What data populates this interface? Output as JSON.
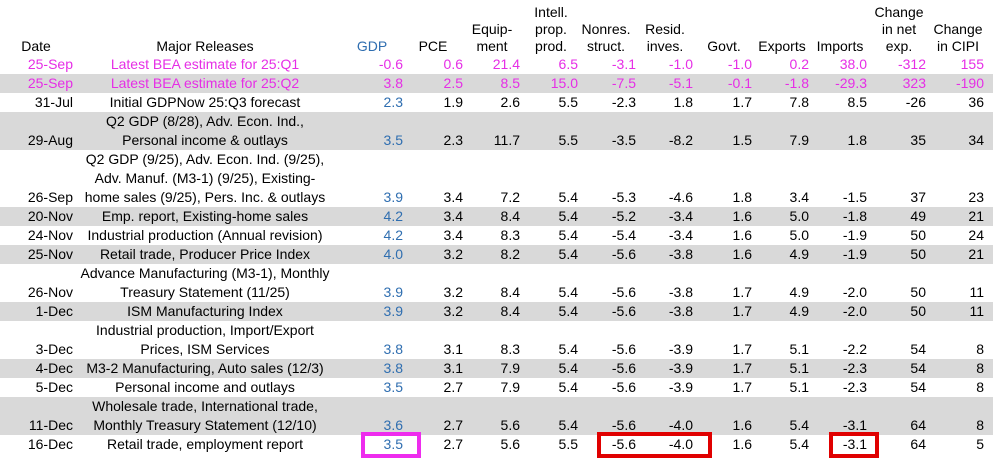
{
  "colors": {
    "estimate": "#e62ee6",
    "gdp": "#2f6eb0",
    "shade": "#d9d9d9",
    "box_gdp": "#ee2cee",
    "box_other": "#e00000"
  },
  "headers": {
    "date": "Date",
    "major": "Major Releases",
    "gdp": "GDP",
    "pce": "PCE",
    "equip": [
      "Equip-",
      "ment"
    ],
    "ipp": [
      "Intell.",
      "prop.",
      "prod."
    ],
    "nonres": [
      "Nonres.",
      "struct."
    ],
    "resid": [
      "Resid.",
      "inves."
    ],
    "govt": "Govt.",
    "exports": "Exports",
    "imports": "Imports",
    "netexp": [
      "Change",
      "in net",
      "exp."
    ],
    "cipi": [
      "Change",
      "in CIPI"
    ]
  },
  "rows": [
    {
      "date": "25-Sep",
      "release": [
        "Latest BEA estimate for 25:Q1"
      ],
      "gdp": "-0.6",
      "pce": "0.6",
      "equip": "21.4",
      "ipp": "6.5",
      "nonres": "-3.1",
      "resid": "-1.0",
      "govt": "-1.0",
      "exports": "0.2",
      "imports": "38.0",
      "netexp": "-312",
      "cipi": "155",
      "style": "estimate",
      "shaded": false
    },
    {
      "date": "25-Sep",
      "release": [
        "Latest BEA estimate for 25:Q2"
      ],
      "gdp": "3.8",
      "pce": "2.5",
      "equip": "8.5",
      "ipp": "15.0",
      "nonres": "-7.5",
      "resid": "-5.1",
      "govt": "-0.1",
      "exports": "-1.8",
      "imports": "-29.3",
      "netexp": "323",
      "cipi": "-190",
      "style": "estimate",
      "shaded": true
    },
    {
      "date": "31-Jul",
      "release": [
        "Initial GDPNow 25:Q3 forecast"
      ],
      "gdp": "2.3",
      "pce": "1.9",
      "equip": "2.6",
      "ipp": "5.5",
      "nonres": "-2.3",
      "resid": "1.8",
      "govt": "1.7",
      "exports": "7.8",
      "imports": "8.5",
      "netexp": "-26",
      "cipi": "36",
      "style": "normal",
      "shaded": false
    },
    {
      "date": "29-Aug",
      "release": [
        "Q2 GDP (8/28), Adv. Econ. Ind.,",
        "Personal income & outlays"
      ],
      "gdp": "3.5",
      "pce": "2.3",
      "equip": "11.7",
      "ipp": "5.5",
      "nonres": "-3.5",
      "resid": "-8.2",
      "govt": "1.5",
      "exports": "7.9",
      "imports": "1.8",
      "netexp": "35",
      "cipi": "34",
      "style": "normal",
      "shaded": true
    },
    {
      "date": "26-Sep",
      "release": [
        "Q2 GDP (9/25), Adv. Econ. Ind. (9/25),",
        "Adv. Manuf. (M3-1) (9/25), Existing-",
        "home sales (9/25), Pers. Inc. & outlays"
      ],
      "gdp": "3.9",
      "pce": "3.4",
      "equip": "7.2",
      "ipp": "5.4",
      "nonres": "-5.3",
      "resid": "-4.6",
      "govt": "1.8",
      "exports": "3.4",
      "imports": "-1.5",
      "netexp": "37",
      "cipi": "23",
      "style": "normal",
      "shaded": false
    },
    {
      "date": "20-Nov",
      "release": [
        "Emp. report, Existing-home sales"
      ],
      "gdp": "4.2",
      "pce": "3.4",
      "equip": "8.4",
      "ipp": "5.4",
      "nonres": "-5.2",
      "resid": "-3.4",
      "govt": "1.6",
      "exports": "5.0",
      "imports": "-1.8",
      "netexp": "49",
      "cipi": "21",
      "style": "normal",
      "shaded": true
    },
    {
      "date": "24-Nov",
      "release": [
        "Industrial production (Annual revision)"
      ],
      "gdp": "4.2",
      "pce": "3.4",
      "equip": "8.3",
      "ipp": "5.4",
      "nonres": "-5.4",
      "resid": "-3.4",
      "govt": "1.6",
      "exports": "5.0",
      "imports": "-1.9",
      "netexp": "50",
      "cipi": "24",
      "style": "normal",
      "shaded": false
    },
    {
      "date": "25-Nov",
      "release": [
        "Retail trade, Producer Price Index"
      ],
      "gdp": "4.0",
      "pce": "3.2",
      "equip": "8.2",
      "ipp": "5.4",
      "nonres": "-5.6",
      "resid": "-3.8",
      "govt": "1.6",
      "exports": "4.9",
      "imports": "-1.9",
      "netexp": "50",
      "cipi": "21",
      "style": "normal",
      "shaded": true
    },
    {
      "date": "26-Nov",
      "release": [
        "Advance Manufacturing (M3-1), Monthly",
        "Treasury Statement (11/25)"
      ],
      "gdp": "3.9",
      "pce": "3.2",
      "equip": "8.4",
      "ipp": "5.4",
      "nonres": "-5.6",
      "resid": "-3.8",
      "govt": "1.7",
      "exports": "4.9",
      "imports": "-2.0",
      "netexp": "50",
      "cipi": "11",
      "style": "normal",
      "shaded": false
    },
    {
      "date": "1-Dec",
      "release": [
        "ISM Manufacturing Index"
      ],
      "gdp": "3.9",
      "pce": "3.2",
      "equip": "8.4",
      "ipp": "5.4",
      "nonres": "-5.6",
      "resid": "-3.8",
      "govt": "1.7",
      "exports": "4.9",
      "imports": "-2.0",
      "netexp": "50",
      "cipi": "11",
      "style": "normal",
      "shaded": true
    },
    {
      "date": "3-Dec",
      "release": [
        "Industrial production, Import/Export",
        "Prices, ISM Services"
      ],
      "gdp": "3.8",
      "pce": "3.1",
      "equip": "8.3",
      "ipp": "5.4",
      "nonres": "-5.6",
      "resid": "-3.9",
      "govt": "1.7",
      "exports": "5.1",
      "imports": "-2.2",
      "netexp": "54",
      "cipi": "8",
      "style": "normal",
      "shaded": false
    },
    {
      "date": "4-Dec",
      "release": [
        "M3-2 Manufacturing, Auto sales (12/3)"
      ],
      "gdp": "3.8",
      "pce": "3.1",
      "equip": "7.9",
      "ipp": "5.4",
      "nonres": "-5.6",
      "resid": "-3.9",
      "govt": "1.7",
      "exports": "5.1",
      "imports": "-2.3",
      "netexp": "54",
      "cipi": "8",
      "style": "normal",
      "shaded": true
    },
    {
      "date": "5-Dec",
      "release": [
        "Personal income and outlays"
      ],
      "gdp": "3.5",
      "pce": "2.7",
      "equip": "7.9",
      "ipp": "5.4",
      "nonres": "-5.6",
      "resid": "-3.9",
      "govt": "1.7",
      "exports": "5.1",
      "imports": "-2.3",
      "netexp": "54",
      "cipi": "8",
      "style": "normal",
      "shaded": false
    },
    {
      "date": "11-Dec",
      "release": [
        "Wholesale trade, International trade,",
        "Monthly Treasury Statement (12/10)"
      ],
      "gdp": "3.6",
      "pce": "2.7",
      "equip": "5.6",
      "ipp": "5.4",
      "nonres": "-5.6",
      "resid": "-4.0",
      "govt": "1.6",
      "exports": "5.4",
      "imports": "-3.1",
      "netexp": "64",
      "cipi": "8",
      "style": "normal",
      "shaded": true
    },
    {
      "date": "16-Dec",
      "release": [
        "Retail trade, employment report"
      ],
      "gdp": "3.5",
      "pce": "2.7",
      "equip": "5.6",
      "ipp": "5.5",
      "nonres": "-5.6",
      "resid": "-4.0",
      "govt": "1.6",
      "exports": "5.4",
      "imports": "-3.1",
      "netexp": "64",
      "cipi": "5",
      "style": "normal",
      "shaded": false
    }
  ]
}
